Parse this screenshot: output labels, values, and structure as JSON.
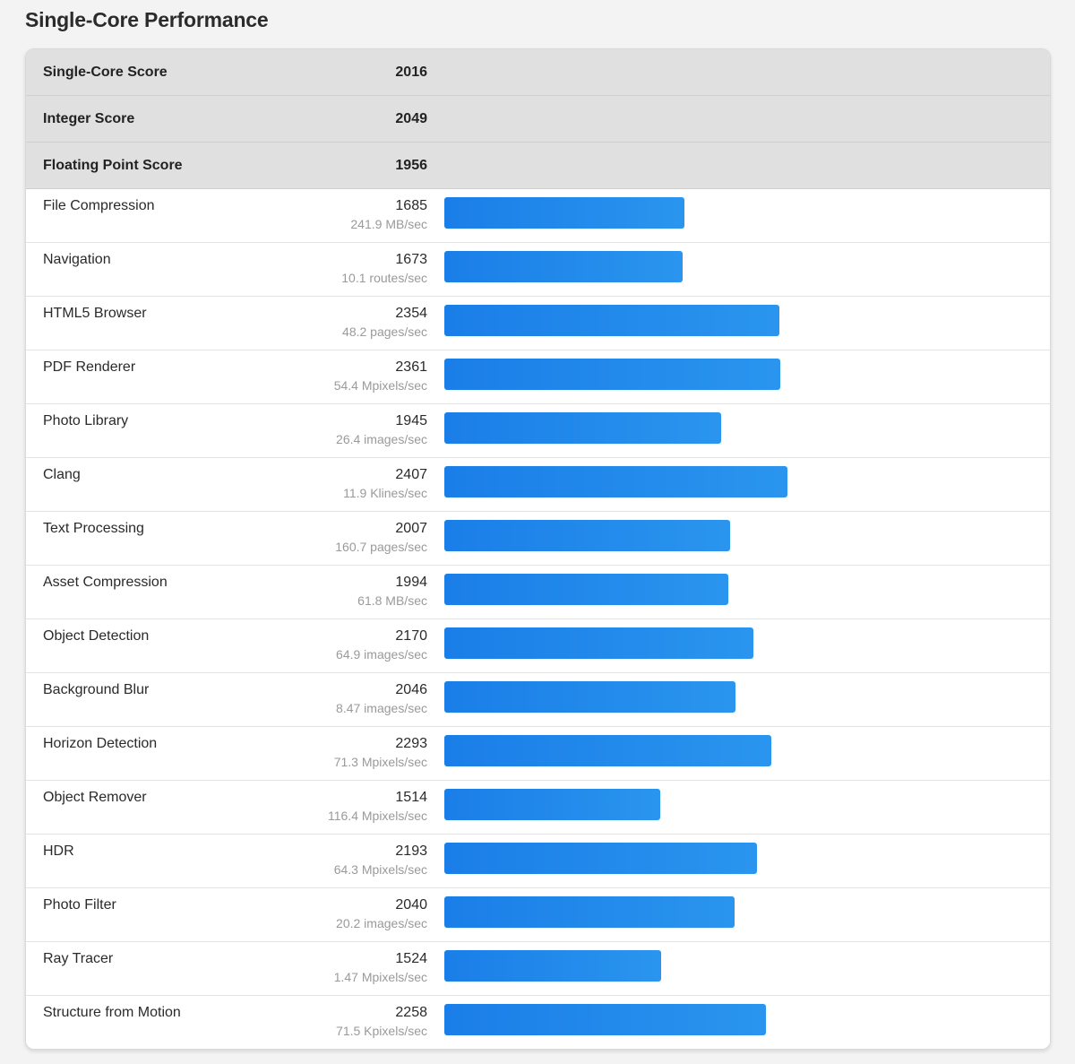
{
  "page": {
    "title": "Single-Core Performance"
  },
  "summary": [
    {
      "name": "Single-Core Score",
      "score": "2016"
    },
    {
      "name": "Integer Score",
      "score": "2049"
    },
    {
      "name": "Floating Point Score",
      "score": "1956"
    }
  ],
  "bar_scale_max": 4150,
  "bar_color": "#1a7ee8",
  "benchmarks": [
    {
      "name": "File Compression",
      "score": 1685,
      "rate": "241.9 MB/sec"
    },
    {
      "name": "Navigation",
      "score": 1673,
      "rate": "10.1 routes/sec"
    },
    {
      "name": "HTML5 Browser",
      "score": 2354,
      "rate": "48.2 pages/sec"
    },
    {
      "name": "PDF Renderer",
      "score": 2361,
      "rate": "54.4 Mpixels/sec"
    },
    {
      "name": "Photo Library",
      "score": 1945,
      "rate": "26.4 images/sec"
    },
    {
      "name": "Clang",
      "score": 2407,
      "rate": "11.9 Klines/sec"
    },
    {
      "name": "Text Processing",
      "score": 2007,
      "rate": "160.7 pages/sec"
    },
    {
      "name": "Asset Compression",
      "score": 1994,
      "rate": "61.8 MB/sec"
    },
    {
      "name": "Object Detection",
      "score": 2170,
      "rate": "64.9 images/sec"
    },
    {
      "name": "Background Blur",
      "score": 2046,
      "rate": "8.47 images/sec"
    },
    {
      "name": "Horizon Detection",
      "score": 2293,
      "rate": "71.3 Mpixels/sec"
    },
    {
      "name": "Object Remover",
      "score": 1514,
      "rate": "116.4 Mpixels/sec"
    },
    {
      "name": "HDR",
      "score": 2193,
      "rate": "64.3 Mpixels/sec"
    },
    {
      "name": "Photo Filter",
      "score": 2040,
      "rate": "20.2 images/sec"
    },
    {
      "name": "Ray Tracer",
      "score": 1524,
      "rate": "1.47 Mpixels/sec"
    },
    {
      "name": "Structure from Motion",
      "score": 2258,
      "rate": "71.5 Kpixels/sec"
    }
  ]
}
